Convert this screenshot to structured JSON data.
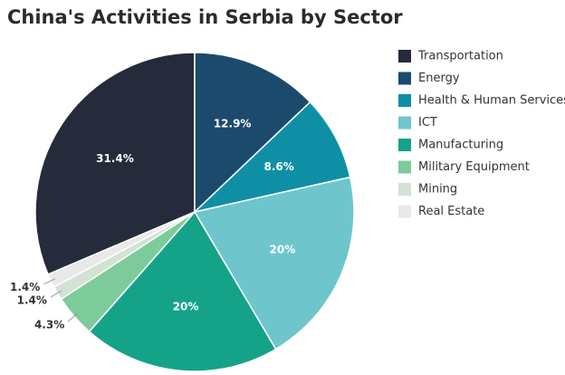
{
  "chart_data": {
    "type": "pie",
    "title": "China's Activities in Serbia by Sector",
    "categories": [
      "Transportation",
      "Energy",
      "Health & Human Services",
      "ICT",
      "Manufacturing",
      "Military Equipment",
      "Mining",
      "Real Estate"
    ],
    "values": [
      31.4,
      12.9,
      8.6,
      20,
      20,
      4.3,
      1.4,
      1.4
    ],
    "value_labels": [
      "31.4%",
      "12.9%",
      "8.6%",
      "20%",
      "20%",
      "4.3%",
      "1.4%",
      "1.4%"
    ],
    "colors": [
      "#262b3b",
      "#1b4a6d",
      "#0f8fa6",
      "#6ec6cc",
      "#14a389",
      "#7dcb9b",
      "#d2e2d4",
      "#e9e9e9"
    ],
    "legend": "right"
  }
}
